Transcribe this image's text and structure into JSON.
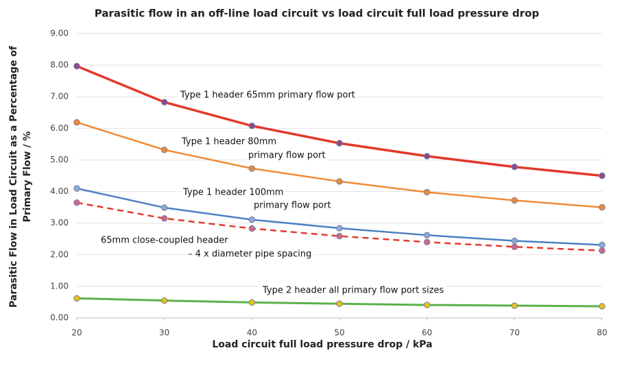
{
  "chart_data": {
    "type": "line",
    "title": "Parasitic flow in an off-line load circuit vs load circuit full load pressure drop",
    "x_label": "Load circuit full load pressure drop / kPa",
    "y_label": [
      "Parasitic Flow in Load Circuit as a Percentage of",
      "Primary Flow / %"
    ],
    "x": [
      20,
      30,
      40,
      50,
      60,
      70,
      80
    ],
    "xlim": [
      20,
      80
    ],
    "xticks": [
      20,
      30,
      40,
      50,
      60,
      70,
      80
    ],
    "ylim": [
      0,
      9
    ],
    "yticks": [
      {
        "value": 0,
        "label": "0.00"
      },
      {
        "value": 1,
        "label": "1.00"
      },
      {
        "value": 2,
        "label": "2.00"
      },
      {
        "value": 3,
        "label": "3.00"
      },
      {
        "value": 4,
        "label": "4.00"
      },
      {
        "value": 5,
        "label": "5.00"
      },
      {
        "value": 6,
        "label": "6.00"
      },
      {
        "value": 7,
        "label": "7.00"
      },
      {
        "value": 8,
        "label": "8.00"
      },
      {
        "value": 9,
        "label": "9.00"
      }
    ],
    "grid": true,
    "series": [
      {
        "label_lines": [
          "Type 1 header 65mm primary flow port"
        ],
        "color": "#e2392a",
        "marker_color": "#8b4a8f",
        "width": 3.5,
        "dashed": false,
        "values": [
          7.97,
          6.83,
          6.08,
          5.53,
          5.12,
          4.78,
          4.5
        ]
      },
      {
        "label_lines": [
          "Type 1 header 80mm",
          "primary flow port"
        ],
        "color": "#f08a33",
        "marker_color": "#f08a33",
        "width": 2.5,
        "dashed": false,
        "values": [
          6.19,
          5.32,
          4.73,
          4.32,
          3.98,
          3.72,
          3.5
        ]
      },
      {
        "label_lines": [
          "Type 1 header 100mm",
          "primary flow port"
        ],
        "color": "#4a7fc1",
        "marker_color": "#8aaad8",
        "width": 2.5,
        "dashed": false,
        "values": [
          4.1,
          3.49,
          3.11,
          2.84,
          2.62,
          2.44,
          2.31
        ]
      },
      {
        "label_lines": [
          "65mm close-coupled header",
          "– 4 x diameter pipe spacing"
        ],
        "color": "#e2392a",
        "marker_color": "#c96a8a",
        "width": 2.5,
        "dashed": true,
        "values": [
          3.65,
          3.15,
          2.83,
          2.59,
          2.4,
          2.25,
          2.13
        ]
      },
      {
        "label_lines": [
          "Type 2 header all primary flow port sizes"
        ],
        "color": "#5bb04a",
        "marker_color": "#e8c21a",
        "width": 3,
        "dashed": false,
        "values": [
          0.62,
          0.55,
          0.49,
          0.45,
          0.41,
          0.39,
          0.37
        ]
      }
    ]
  }
}
